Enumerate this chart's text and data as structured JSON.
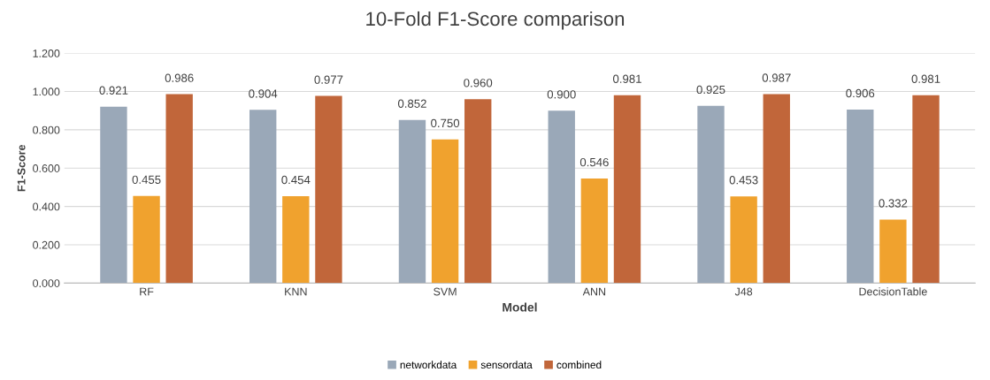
{
  "chart_data": {
    "type": "bar",
    "title": "10-Fold F1-Score comparison",
    "xlabel": "Model",
    "ylabel": "F1-Score",
    "categories": [
      "RF",
      "KNN",
      "SVM",
      "ANN",
      "J48",
      "DecisionTable"
    ],
    "series": [
      {
        "name": "networkdata",
        "color": "#9aa8b8",
        "values": [
          0.921,
          0.904,
          0.852,
          0.9,
          0.925,
          0.906
        ],
        "value_labels": [
          "0.921",
          "0.904",
          "0.852",
          "0.900",
          "0.925",
          "0.906"
        ]
      },
      {
        "name": "sensordata",
        "color": "#f0a22e",
        "values": [
          0.455,
          0.454,
          0.75,
          0.546,
          0.453,
          0.332
        ],
        "value_labels": [
          "0.455",
          "0.454",
          "0.750",
          "0.546",
          "0.453",
          "0.332"
        ]
      },
      {
        "name": "combined",
        "color": "#c1663a",
        "values": [
          0.986,
          0.977,
          0.96,
          0.981,
          0.987,
          0.981
        ],
        "value_labels": [
          "0.986",
          "0.977",
          "0.960",
          "0.981",
          "0.987",
          "0.981"
        ]
      }
    ],
    "ylim": [
      0,
      1.2
    ],
    "yticks": [
      {
        "value": 0,
        "label": "0.000"
      },
      {
        "value": 0.2,
        "label": "0.200"
      },
      {
        "value": 0.4,
        "label": "0.400"
      },
      {
        "value": 0.6,
        "label": "0.600"
      },
      {
        "value": 0.8,
        "label": "0.800"
      },
      {
        "value": 1.0,
        "label": "1.000"
      },
      {
        "value": 1.2,
        "label": "1.200"
      }
    ],
    "grid": "y",
    "legend": "bottom"
  }
}
